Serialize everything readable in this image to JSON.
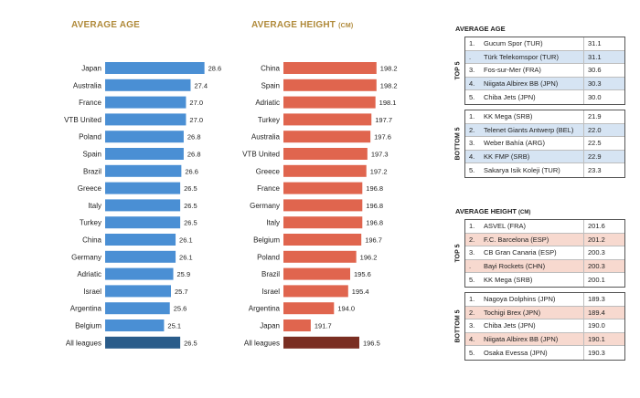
{
  "chart_data": [
    {
      "type": "bar",
      "orientation": "horizontal",
      "title": "AVERAGE AGE",
      "categories": [
        "Japan",
        "Australia",
        "France",
        "VTB United",
        "Poland",
        "Spain",
        "Brazil",
        "Greece",
        "Italy",
        "Turkey",
        "China",
        "Germany",
        "Adriatic",
        "Israel",
        "Argentina",
        "Belgium",
        "All leagues"
      ],
      "values": [
        28.6,
        27.4,
        27.0,
        27.0,
        26.8,
        26.8,
        26.6,
        26.5,
        26.5,
        26.5,
        26.1,
        26.1,
        25.9,
        25.7,
        25.6,
        25.1,
        26.5
      ],
      "value_labels": [
        "28.6",
        "27.4",
        "27.0",
        "27.0",
        "26.8",
        "26.8",
        "26.6",
        "26.5",
        "26.5",
        "26.5",
        "26.1",
        "26.1",
        "25.9",
        "25.7",
        "25.6",
        "25.1",
        "26.5"
      ],
      "xlim": [
        20,
        29.5
      ],
      "colors": {
        "bar": "#4a8fd4",
        "total": "#2a5c8a"
      }
    },
    {
      "type": "bar",
      "orientation": "horizontal",
      "title": "AVERAGE HEIGHT",
      "title_unit": "(CM)",
      "categories": [
        "China",
        "Spain",
        "Adriatic",
        "Turkey",
        "Australia",
        "VTB United",
        "Greece",
        "France",
        "Germany",
        "Italy",
        "Belgium",
        "Poland",
        "Brazil",
        "Israel",
        "Argentina",
        "Japan",
        "All leagues"
      ],
      "values": [
        198.2,
        198.2,
        198.1,
        197.7,
        197.6,
        197.3,
        197.2,
        196.8,
        196.8,
        196.8,
        196.7,
        196.2,
        195.6,
        195.4,
        194.0,
        191.7,
        196.5
      ],
      "value_labels": [
        "198.2",
        "198.2",
        "198.1",
        "197.7",
        "197.6",
        "197.3",
        "197.2",
        "196.8",
        "196.8",
        "196.8",
        "196.7",
        "196.2",
        "195.6",
        "195.4",
        "194.0",
        "191.7",
        "196.5"
      ],
      "xlim": [
        189,
        198.4
      ],
      "colors": {
        "bar": "#e0654e",
        "total": "#7a2e22"
      }
    },
    {
      "type": "table",
      "title": "AVERAGE AGE",
      "accent": "#d6e4f3",
      "groups": [
        {
          "label": "TOP 5",
          "rows": [
            {
              "rank": "1.",
              "name": "Gucum Spor (TUR)",
              "value": "31.1",
              "hl": false
            },
            {
              "rank": ".",
              "name": "Türk Telekomspor (TUR)",
              "value": "31.1",
              "hl": true
            },
            {
              "rank": "3.",
              "name": "Fos-sur-Mer (FRA)",
              "value": "30.6",
              "hl": false
            },
            {
              "rank": "4.",
              "name": "Niigata Albirex BB (JPN)",
              "value": "30.3",
              "hl": true
            },
            {
              "rank": "5.",
              "name": "Chiba Jets (JPN)",
              "value": "30.0",
              "hl": false
            }
          ]
        },
        {
          "label": "BOTTOM 5",
          "rows": [
            {
              "rank": "1.",
              "name": "KK Mega (SRB)",
              "value": "21.9",
              "hl": false
            },
            {
              "rank": "2.",
              "name": "Telenet Giants Antwerp (BEL)",
              "value": "22.0",
              "hl": true
            },
            {
              "rank": "3.",
              "name": "Weber Bahía (ARG)",
              "value": "22.5",
              "hl": false
            },
            {
              "rank": "4.",
              "name": "KK FMP (SRB)",
              "value": "22.9",
              "hl": true
            },
            {
              "rank": "5.",
              "name": "Sakarya Isik Koleji (TUR)",
              "value": "23.3",
              "hl": false
            }
          ]
        }
      ]
    },
    {
      "type": "table",
      "title": "AVERAGE HEIGHT",
      "title_unit": "(CM)",
      "accent": "#f7d9cf",
      "groups": [
        {
          "label": "TOP 5",
          "rows": [
            {
              "rank": "1.",
              "name": "ASVEL (FRA)",
              "value": "201.6",
              "hl": false
            },
            {
              "rank": "2.",
              "name": "F.C. Barcelona (ESP)",
              "value": "201.2",
              "hl": true
            },
            {
              "rank": "3.",
              "name": "CB Gran Canaria (ESP)",
              "value": "200.3",
              "hl": false
            },
            {
              "rank": ".",
              "name": "Bayi Rockets (CHN)",
              "value": "200.3",
              "hl": true
            },
            {
              "rank": "5.",
              "name": "KK Mega (SRB)",
              "value": "200.1",
              "hl": false
            }
          ]
        },
        {
          "label": "BOTTOM 5",
          "rows": [
            {
              "rank": "1.",
              "name": "Nagoya Dolphins (JPN)",
              "value": "189.3",
              "hl": false
            },
            {
              "rank": "2.",
              "name": "Tochigi Brex (JPN)",
              "value": "189.4",
              "hl": true
            },
            {
              "rank": "3.",
              "name": "Chiba Jets (JPN)",
              "value": "190.0",
              "hl": false
            },
            {
              "rank": "4.",
              "name": "Niigata Albirex BB (JPN)",
              "value": "190.1",
              "hl": true
            },
            {
              "rank": "5.",
              "name": "Osaka Evessa (JPN)",
              "value": "190.3",
              "hl": false
            }
          ]
        }
      ]
    }
  ]
}
